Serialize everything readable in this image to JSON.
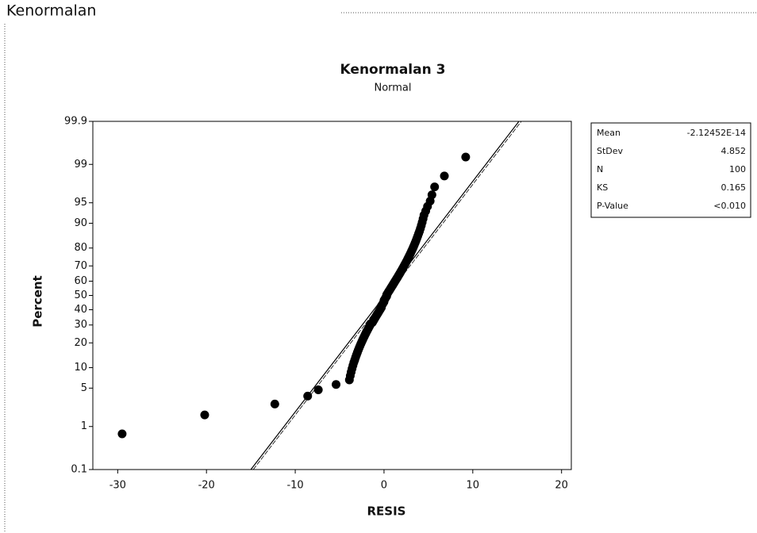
{
  "section_title": "Kenormalan",
  "chart_data": {
    "type": "scatter",
    "title": "Kenormalan 3",
    "subtitle": "Normal",
    "x_label": "RESIS",
    "y_label": "Percent",
    "y_scale": "normal-probability",
    "xlim": [
      -32.8,
      21.1
    ],
    "xticks": [
      -30,
      -20,
      -10,
      0,
      10,
      20
    ],
    "ylim": [
      0.1,
      99.9
    ],
    "yticks": [
      0.1,
      1,
      5,
      10,
      20,
      30,
      40,
      50,
      60,
      70,
      80,
      90,
      95,
      99,
      99.9
    ],
    "x": [
      -29.5,
      -20.2,
      -12.3,
      -8.6,
      -7.4,
      -5.4,
      -3.9,
      -3.8,
      -3.7,
      -3.6,
      -3.5,
      -3.4,
      -3.3,
      -3.2,
      -3.1,
      -3.0,
      -2.9,
      -2.8,
      -2.7,
      -2.6,
      -2.5,
      -2.4,
      -2.3,
      -2.2,
      -2.1,
      -2.0,
      -1.9,
      -1.8,
      -1.7,
      -1.6,
      -1.5,
      -1.3,
      -1.2,
      -1.1,
      -1.0,
      -0.9,
      -0.8,
      -0.7,
      -0.6,
      -0.5,
      -0.4,
      -0.3,
      -0.3,
      -0.2,
      -0.1,
      0.0,
      0.0,
      0.1,
      0.2,
      0.3,
      0.3,
      0.4,
      0.5,
      0.6,
      0.7,
      0.8,
      0.9,
      1.0,
      1.1,
      1.2,
      1.3,
      1.4,
      1.5,
      1.6,
      1.7,
      1.8,
      1.9,
      2.0,
      2.1,
      2.2,
      2.3,
      2.4,
      2.5,
      2.6,
      2.7,
      2.8,
      2.9,
      3.0,
      3.1,
      3.2,
      3.3,
      3.4,
      3.5,
      3.6,
      3.7,
      3.8,
      3.9,
      4.0,
      4.1,
      4.2,
      4.3,
      4.4,
      4.5,
      4.7,
      4.9,
      5.2,
      5.4,
      5.7,
      6.8,
      9.2
    ],
    "series": [
      {
        "color": "#000000",
        "values": [
          0.7,
          1.7,
          2.7,
          3.7,
          4.7,
          5.7,
          6.7,
          7.7,
          8.7,
          9.7,
          10.7,
          11.7,
          12.6,
          13.6,
          14.6,
          15.6,
          16.6,
          17.6,
          18.6,
          19.6,
          20.6,
          21.6,
          22.6,
          23.6,
          24.6,
          25.6,
          26.6,
          27.6,
          28.6,
          29.6,
          30.6,
          31.6,
          32.6,
          33.6,
          34.6,
          35.6,
          36.6,
          37.5,
          38.5,
          39.5,
          40.5,
          41.5,
          42.5,
          43.5,
          44.5,
          45.5,
          46.5,
          47.5,
          48.5,
          49.5,
          50.5,
          51.5,
          52.5,
          53.5,
          54.5,
          55.5,
          56.5,
          57.5,
          58.5,
          59.5,
          60.5,
          61.5,
          62.4,
          63.4,
          64.4,
          65.4,
          66.4,
          67.4,
          68.4,
          69.4,
          70.4,
          71.4,
          72.4,
          73.4,
          74.4,
          75.4,
          76.4,
          77.4,
          78.4,
          79.4,
          80.4,
          81.4,
          82.4,
          83.4,
          84.4,
          85.4,
          86.4,
          87.3,
          88.3,
          89.3,
          90.3,
          91.3,
          92.3,
          93.3,
          94.3,
          95.3,
          96.3,
          97.3,
          98.3,
          99.3
        ]
      }
    ],
    "fit_line": {
      "color": "#000000",
      "x": [
        -15,
        15.2
      ],
      "y": [
        0.1,
        99.9
      ]
    },
    "stats": [
      {
        "label": "Mean",
        "value": "-2.12452E-14"
      },
      {
        "label": "StDev",
        "value": 4.852
      },
      {
        "label": "N",
        "value": 100
      },
      {
        "label": "KS",
        "value": 0.165
      },
      {
        "label": "P-Value",
        "value": "<0.010"
      }
    ]
  }
}
